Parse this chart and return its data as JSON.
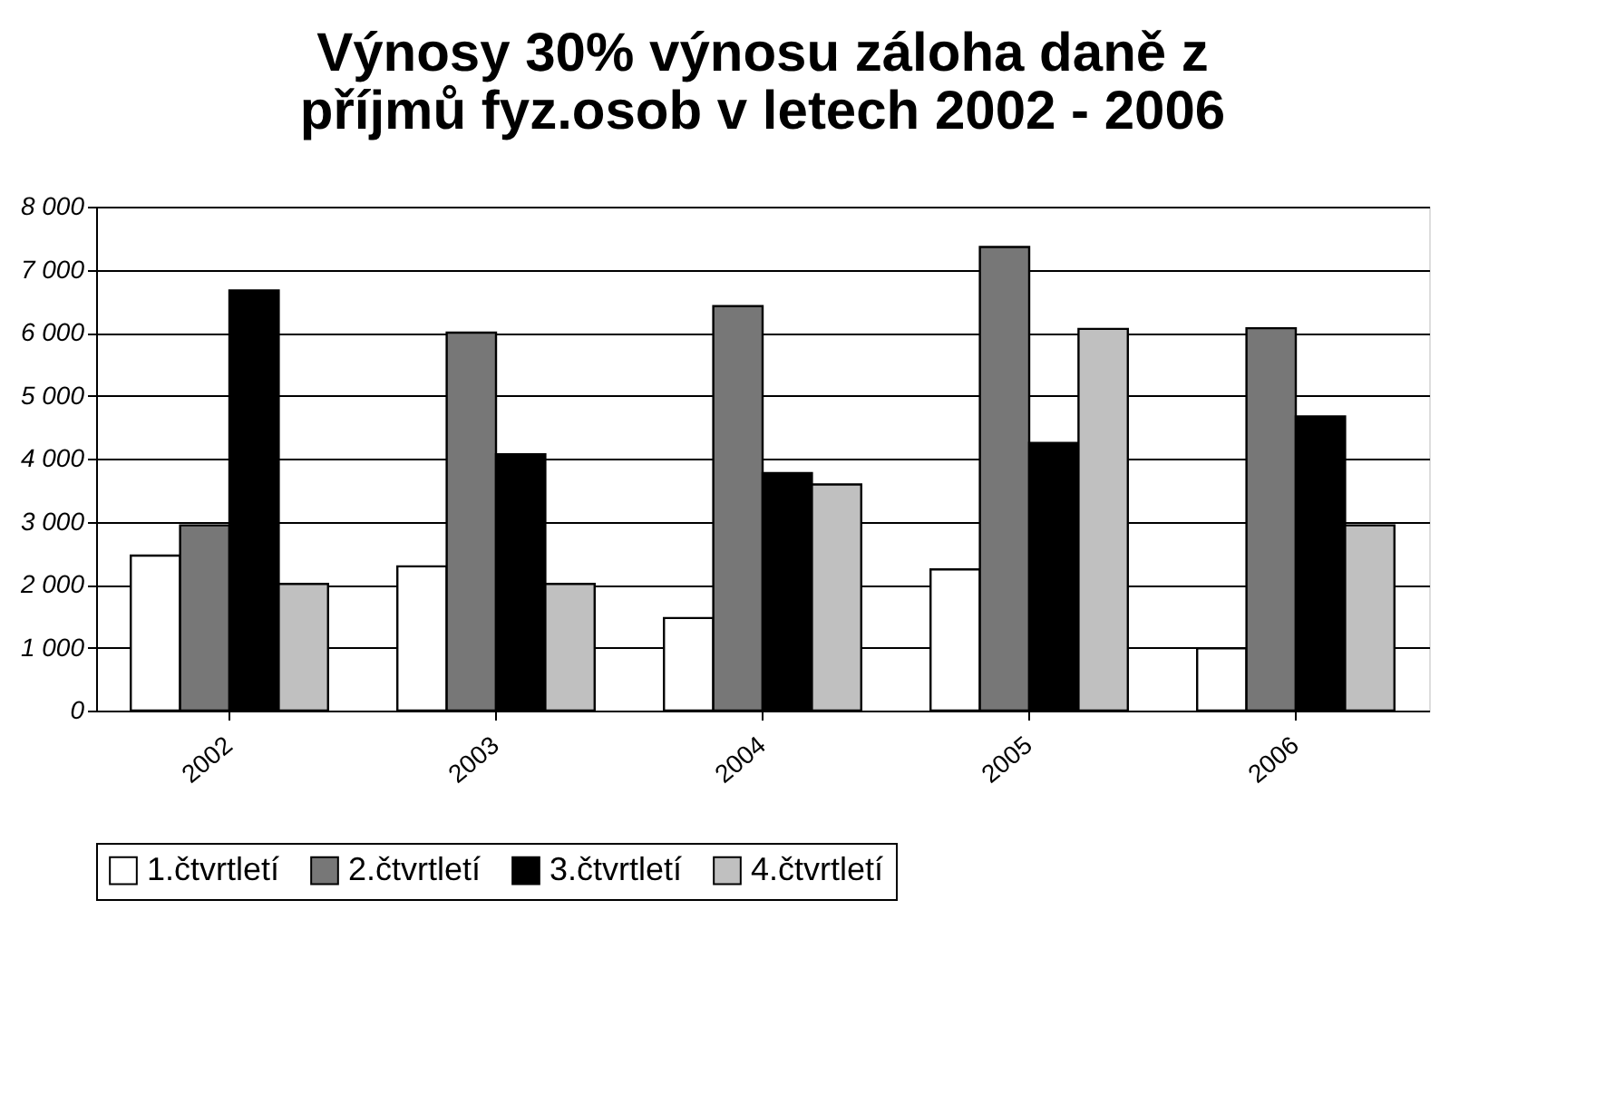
{
  "chart_data": {
    "type": "bar",
    "title": [
      "Výnosy 30% výnosu záloha daně z",
      "příjmů fyz.osob v letech  2002 - 2006"
    ],
    "categories": [
      "2002",
      "2003",
      "2004",
      "2005",
      "2006"
    ],
    "series": [
      {
        "name": "1.čtvrtletí",
        "color": "#ffffff",
        "values": [
          2460,
          2290,
          1470,
          2240,
          990
        ]
      },
      {
        "name": "2.čtvrtletí",
        "color": "#777777",
        "values": [
          2940,
          6000,
          6420,
          7360,
          6070
        ]
      },
      {
        "name": "3.čtvrtletí",
        "color": "#000000",
        "values": [
          6670,
          4070,
          3770,
          4250,
          4670
        ]
      },
      {
        "name": "4.čtvrtletí",
        "color": "#c0c0c0",
        "values": [
          2010,
          2010,
          3590,
          6060,
          2940
        ]
      }
    ],
    "ylim": [
      0,
      8000
    ],
    "yticks": [
      0,
      {
        "value": 1000,
        "label": "1 000"
      },
      {
        "value": 2000,
        "label": "2 000"
      },
      {
        "value": 3000,
        "label": "3 000"
      },
      {
        "value": 4000,
        "label": "4 000"
      },
      {
        "value": 5000,
        "label": "5 000"
      },
      {
        "value": 6000,
        "label": "6 000"
      },
      {
        "value": 7000,
        "label": "7 000"
      },
      {
        "value": 8000,
        "label": "8 000"
      }
    ],
    "grid": "y",
    "legend": "bottom"
  }
}
